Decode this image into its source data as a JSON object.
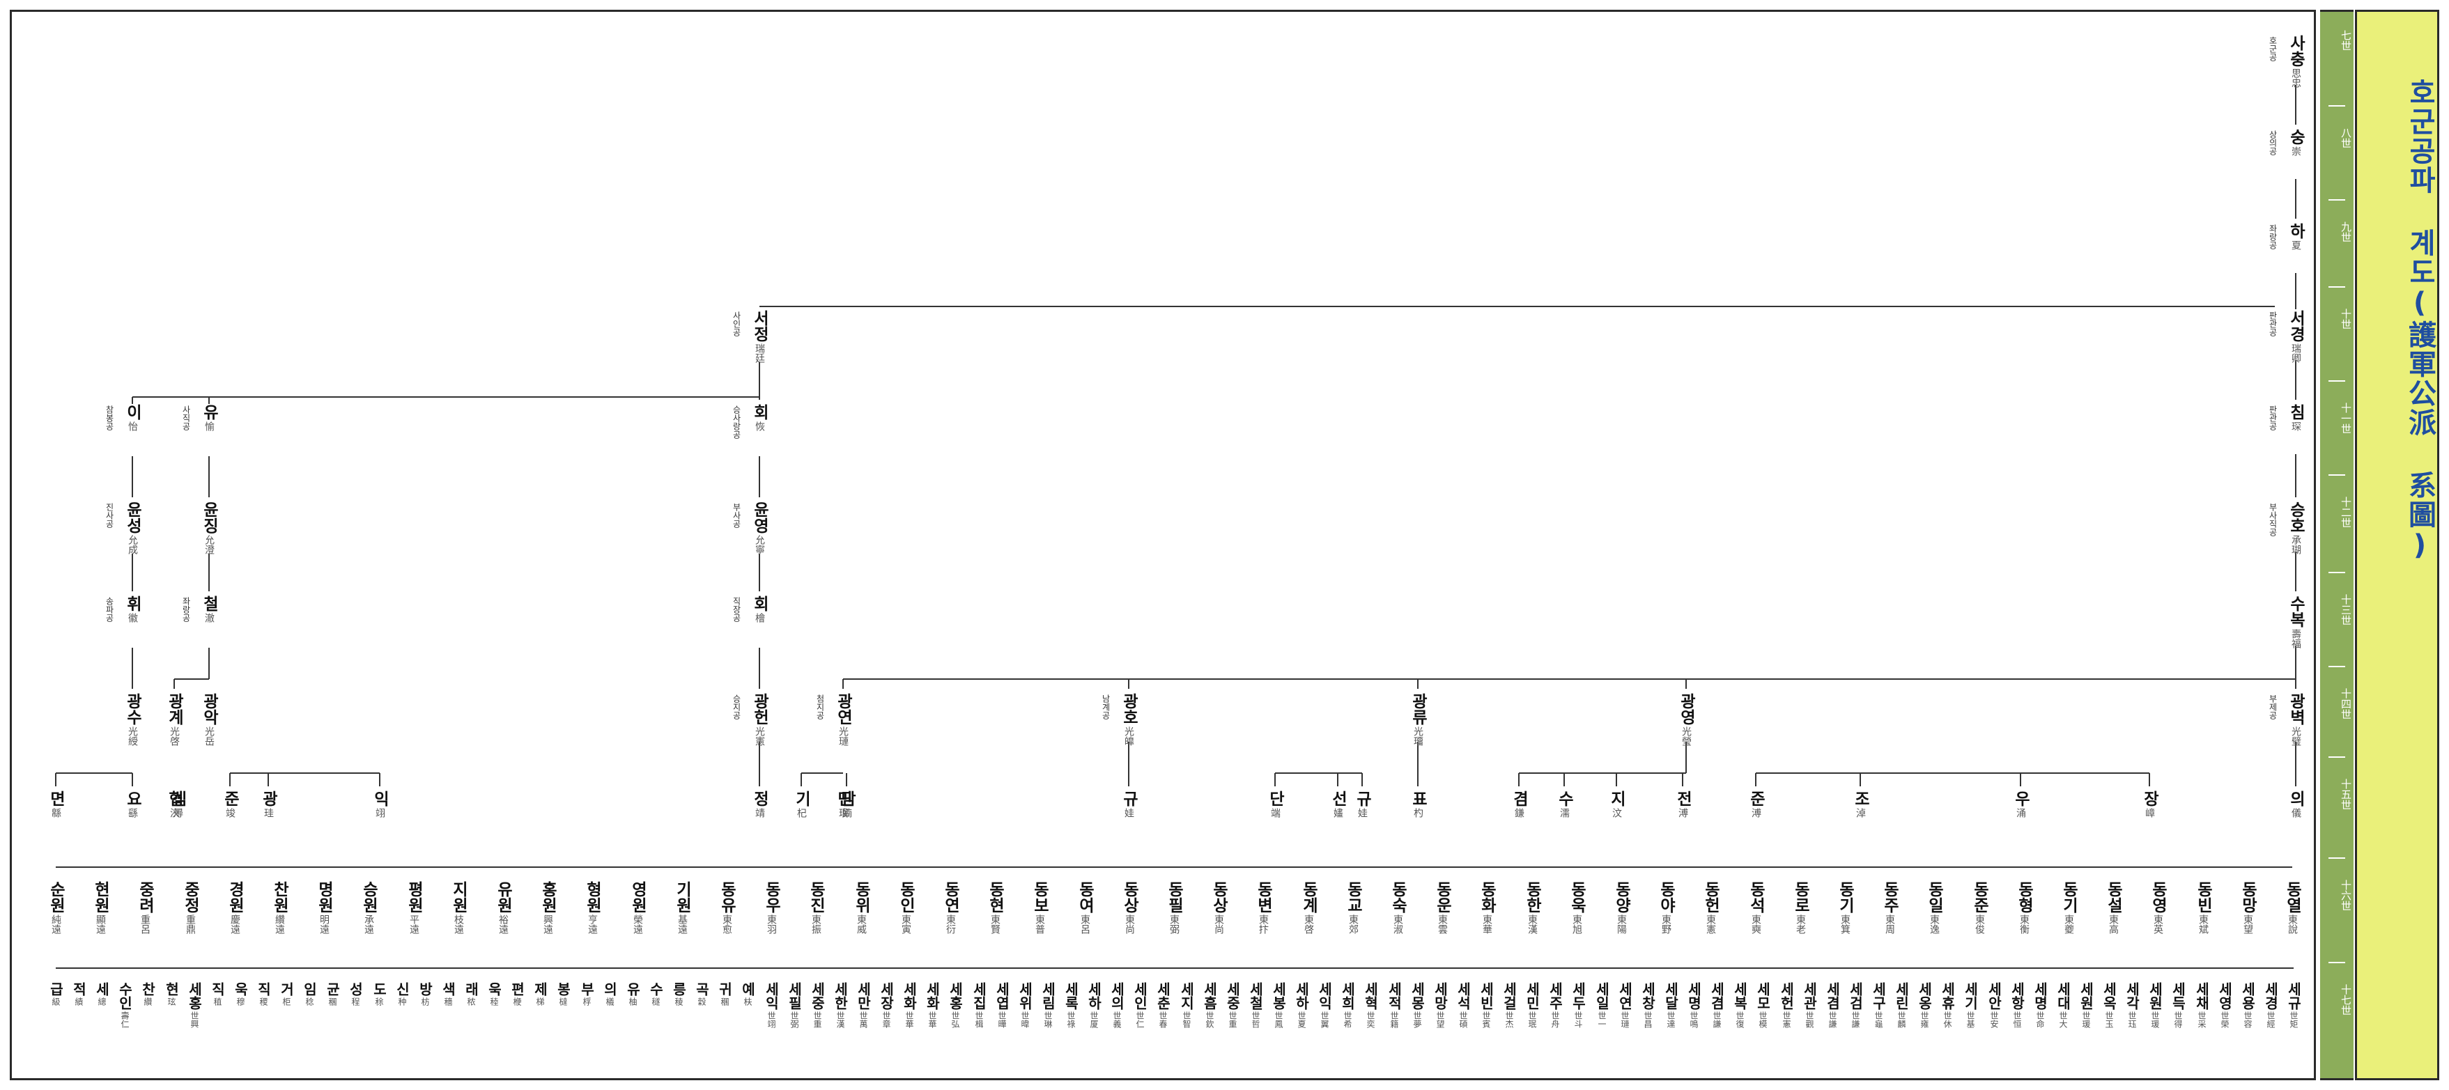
{
  "title": "호군공파 계도(護軍公派 系圖)",
  "generations": [
    "七世",
    "八世",
    "九世",
    "十世",
    "十一世",
    "十二世",
    "十三世",
    "十四世",
    "十五世",
    "十六世",
    "十七世"
  ],
  "people": {
    "p7": {
      "name": "사충",
      "hanja": "思忠",
      "title": "호군공"
    },
    "p8": {
      "name": "숭",
      "hanja": "崇",
      "title": "상의공"
    },
    "p9": {
      "name": "하",
      "hanja": "夏",
      "title": "좌랑공"
    },
    "p10a": {
      "name": "서경",
      "hanja": "瑞卿",
      "title": "판관공"
    },
    "p10b": {
      "name": "서정",
      "hanja": "瑞廷",
      "title": "사인공"
    },
    "p11a": {
      "name": "침",
      "hanja": "琛",
      "title": "판관공"
    },
    "p11b": {
      "name": "회",
      "hanja": "恢",
      "title": "승사랑공"
    },
    "p11c": {
      "name": "유",
      "hanja": "愉",
      "title": "사직공"
    },
    "p11d": {
      "name": "이",
      "hanja": "怡",
      "title": "참봉공"
    },
    "p12a": {
      "name": "승호",
      "hanja": "承瑚",
      "title": "부사직공"
    },
    "p12b": {
      "name": "윤영",
      "hanja": "允寧",
      "title": "부사공"
    },
    "p12c": {
      "name": "윤징",
      "hanja": "允澄",
      "title": ""
    },
    "p12d": {
      "name": "윤성",
      "hanja": "允成",
      "title": "진사공"
    },
    "p13a": {
      "name": "수복",
      "hanja": "壽福",
      "title": ""
    },
    "p13b": {
      "name": "회",
      "hanja": "檜",
      "title": "직장공"
    },
    "p13c": {
      "name": "철",
      "hanja": "澈",
      "title": "좌랑공"
    },
    "p13d": {
      "name": "휘",
      "hanja": "徽",
      "title": "송파공"
    },
    "p14a": {
      "name": "광벽",
      "hanja": "光璧",
      "title": "부제공"
    },
    "p14b": {
      "name": "광영",
      "hanja": "光瑩",
      "title": ""
    },
    "p14c": {
      "name": "광류",
      "hanja": "光璢",
      "title": ""
    },
    "p14d": {
      "name": "광호",
      "hanja": "光皥",
      "title": "남계공"
    },
    "p14e": {
      "name": "광연",
      "hanja": "光璉",
      "title": "첨지공"
    },
    "p14f": {
      "name": "광헌",
      "hanja": "光憲",
      "title": "승지공"
    },
    "p14g": {
      "name": "광악",
      "hanja": "光岳",
      "title": ""
    },
    "p14h": {
      "name": "광계",
      "hanja": "光啓",
      "title": ""
    },
    "p14i": {
      "name": "광수",
      "hanja": "光綬",
      "title": ""
    },
    "p15": [
      {
        "name": "의",
        "hanja": "儀"
      },
      {
        "name": "장",
        "hanja": "嶂"
      },
      {
        "name": "우",
        "hanja": "涌"
      },
      {
        "name": "조",
        "hanja": "淖"
      },
      {
        "name": "준",
        "hanja": "溥"
      },
      {
        "name": "전",
        "hanja": "溥"
      },
      {
        "name": "지",
        "hanja": "汶"
      },
      {
        "name": "수",
        "hanja": "濡"
      },
      {
        "name": "겸",
        "hanja": "鎌"
      },
      {
        "name": "표",
        "hanja": "杓"
      },
      {
        "name": "규",
        "hanja": "娃"
      },
      {
        "name": "선",
        "hanja": "嫿"
      },
      {
        "name": "단",
        "hanja": "端"
      },
      {
        "name": "규",
        "hanja": "娃"
      },
      {
        "name": "담",
        "hanja": "婻"
      },
      {
        "name": "민",
        "hanja": "珉"
      },
      {
        "name": "기",
        "hanja": "杞"
      },
      {
        "name": "정",
        "hanja": "靖"
      },
      {
        "name": "익",
        "hanja": "翊"
      },
      {
        "name": "광",
        "hanja": "珪"
      },
      {
        "name": "준",
        "hanja": "竣"
      },
      {
        "name": "심",
        "hanja": "潯"
      },
      {
        "name": "협",
        "hanja": "浹"
      },
      {
        "name": "요",
        "hanja": "繇"
      },
      {
        "name": "면",
        "hanja": "緜"
      }
    ],
    "p16": [
      {
        "name": "동열",
        "hanja": "東說"
      },
      {
        "name": "동망",
        "hanja": "東望"
      },
      {
        "name": "동빈",
        "hanja": "東斌"
      },
      {
        "name": "동영",
        "hanja": "東英"
      },
      {
        "name": "동설",
        "hanja": "東高"
      },
      {
        "name": "동기",
        "hanja": "東夔"
      },
      {
        "name": "동형",
        "hanja": "東衡"
      },
      {
        "name": "동준",
        "hanja": "東俊"
      },
      {
        "name": "동일",
        "hanja": "東逸"
      },
      {
        "name": "동주",
        "hanja": "東周"
      },
      {
        "name": "동기",
        "hanja": "東箕"
      },
      {
        "name": "동로",
        "hanja": "東老"
      },
      {
        "name": "동석",
        "hanja": "東奭"
      },
      {
        "name": "동헌",
        "hanja": "東憲"
      },
      {
        "name": "동야",
        "hanja": "東野"
      },
      {
        "name": "동양",
        "hanja": "東陽"
      },
      {
        "name": "동욱",
        "hanja": "東旭"
      },
      {
        "name": "동한",
        "hanja": "東漢"
      },
      {
        "name": "동화",
        "hanja": "東華"
      },
      {
        "name": "동운",
        "hanja": "東雲"
      },
      {
        "name": "동숙",
        "hanja": "東淑"
      },
      {
        "name": "동교",
        "hanja": "東郊"
      },
      {
        "name": "동계",
        "hanja": "東啓"
      },
      {
        "name": "동변",
        "hanja": "東抃"
      },
      {
        "name": "동상",
        "hanja": "東尚"
      },
      {
        "name": "동필",
        "hanja": "東弼"
      },
      {
        "name": "동상",
        "hanja": "東尚"
      },
      {
        "name": "동여",
        "hanja": "東呂"
      },
      {
        "name": "동보",
        "hanja": "東普"
      },
      {
        "name": "동현",
        "hanja": "東賢"
      },
      {
        "name": "동연",
        "hanja": "東衍"
      },
      {
        "name": "동인",
        "hanja": "東寅"
      },
      {
        "name": "동위",
        "hanja": "東威"
      },
      {
        "name": "동진",
        "hanja": "東振"
      },
      {
        "name": "동우",
        "hanja": "東羽"
      },
      {
        "name": "동유",
        "hanja": "東愈"
      },
      {
        "name": "기원",
        "hanja": "基遠"
      },
      {
        "name": "영원",
        "hanja": "榮遠"
      },
      {
        "name": "형원",
        "hanja": "亨遠"
      },
      {
        "name": "홍원",
        "hanja": "興遠"
      },
      {
        "name": "유원",
        "hanja": "裕遠"
      },
      {
        "name": "지원",
        "hanja": "枝遠"
      },
      {
        "name": "평원",
        "hanja": "平遠"
      },
      {
        "name": "승원",
        "hanja": "承遠"
      },
      {
        "name": "명원",
        "hanja": "明遠"
      },
      {
        "name": "찬원",
        "hanja": "纘遠"
      },
      {
        "name": "경원",
        "hanja": "慶遠"
      },
      {
        "name": "중정",
        "hanja": "重鼎"
      },
      {
        "name": "중려",
        "hanja": "重呂"
      },
      {
        "name": "현원",
        "hanja": "顯遠"
      },
      {
        "name": "순원",
        "hanja": "純遠"
      }
    ],
    "p17": [
      {
        "name": "세규",
        "hanja": "世矩"
      },
      {
        "name": "세경",
        "hanja": "世經"
      },
      {
        "name": "세용",
        "hanja": "世容"
      },
      {
        "name": "세영",
        "hanja": "世榮"
      },
      {
        "name": "세채",
        "hanja": "世采"
      },
      {
        "name": "세득",
        "hanja": "世得"
      },
      {
        "name": "세원",
        "hanja": "世瑗"
      },
      {
        "name": "세각",
        "hanja": "世珏"
      },
      {
        "name": "세옥",
        "hanja": "世玉"
      },
      {
        "name": "세원",
        "hanja": "世瑗"
      },
      {
        "name": "세대",
        "hanja": "世大"
      },
      {
        "name": "세명",
        "hanja": "世命"
      },
      {
        "name": "세항",
        "hanja": "世恒"
      },
      {
        "name": "세안",
        "hanja": "世安"
      },
      {
        "name": "세기",
        "hanja": "世基"
      },
      {
        "name": "세휴",
        "hanja": "世休"
      },
      {
        "name": "세옹",
        "hanja": "世雍"
      },
      {
        "name": "세린",
        "hanja": "世麟"
      },
      {
        "name": "세구",
        "hanja": "世龜"
      },
      {
        "name": "세검",
        "hanja": "世謙"
      },
      {
        "name": "세겸",
        "hanja": "世謙"
      },
      {
        "name": "세관",
        "hanja": "世觀"
      },
      {
        "name": "세헌",
        "hanja": "世憲"
      },
      {
        "name": "세모",
        "hanja": "世模"
      },
      {
        "name": "세복",
        "hanja": "世復"
      },
      {
        "name": "세겸",
        "hanja": "世謙"
      },
      {
        "name": "세명",
        "hanja": "世鳴"
      },
      {
        "name": "세달",
        "hanja": "世達"
      },
      {
        "name": "세창",
        "hanja": "世昌"
      },
      {
        "name": "세연",
        "hanja": "世璉"
      },
      {
        "name": "세일",
        "hanja": "世一"
      },
      {
        "name": "세두",
        "hanja": "世斗"
      },
      {
        "name": "세주",
        "hanja": "世舟"
      },
      {
        "name": "세민",
        "hanja": "世珉"
      },
      {
        "name": "세걸",
        "hanja": "世杰"
      },
      {
        "name": "세빈",
        "hanja": "世賓"
      },
      {
        "name": "세석",
        "hanja": "世碩"
      },
      {
        "name": "세망",
        "hanja": "世望"
      },
      {
        "name": "세몽",
        "hanja": "世夢"
      },
      {
        "name": "세적",
        "hanja": "世籍"
      },
      {
        "name": "세혁",
        "hanja": "世奕"
      },
      {
        "name": "세희",
        "hanja": "世希"
      },
      {
        "name": "세익",
        "hanja": "世翼"
      },
      {
        "name": "세하",
        "hanja": "世夏"
      },
      {
        "name": "세봉",
        "hanja": "世鳳"
      },
      {
        "name": "세철",
        "hanja": "世哲"
      },
      {
        "name": "세중",
        "hanja": "世重"
      },
      {
        "name": "세흠",
        "hanja": "世欽"
      },
      {
        "name": "세지",
        "hanja": "世智"
      },
      {
        "name": "세춘",
        "hanja": "世春"
      },
      {
        "name": "세인",
        "hanja": "世仁"
      },
      {
        "name": "세의",
        "hanja": "世義"
      },
      {
        "name": "세하",
        "hanja": "世厦"
      },
      {
        "name": "세록",
        "hanja": "世祿"
      },
      {
        "name": "세림",
        "hanja": "世琳"
      },
      {
        "name": "세위",
        "hanja": "世暐"
      },
      {
        "name": "세엽",
        "hanja": "世曄"
      },
      {
        "name": "세집",
        "hanja": "世楫"
      },
      {
        "name": "세홍",
        "hanja": "世弘"
      },
      {
        "name": "세화",
        "hanja": "世華"
      },
      {
        "name": "세화",
        "hanja": "世華"
      },
      {
        "name": "세장",
        "hanja": "世章"
      },
      {
        "name": "세만",
        "hanja": "世萬"
      },
      {
        "name": "세한",
        "hanja": "世漢"
      },
      {
        "name": "세중",
        "hanja": "世重"
      },
      {
        "name": "세필",
        "hanja": "世弼"
      },
      {
        "name": "세익",
        "hanja": "世翊"
      },
      {
        "name": "예",
        "hanja": "枎"
      },
      {
        "name": "귀",
        "hanja": "稛"
      },
      {
        "name": "곡",
        "hanja": "穀"
      },
      {
        "name": "릉",
        "hanja": "稜"
      },
      {
        "name": "수",
        "hanja": "穟"
      },
      {
        "name": "유",
        "hanja": "柚"
      },
      {
        "name": "의",
        "hanja": "檥"
      },
      {
        "name": "부",
        "hanja": "桴"
      },
      {
        "name": "봉",
        "hanja": "橽"
      },
      {
        "name": "제",
        "hanja": "梯"
      },
      {
        "name": "편",
        "hanja": "楩"
      },
      {
        "name": "욱",
        "hanja": "稑"
      },
      {
        "name": "래",
        "hanja": "秾"
      },
      {
        "name": "색",
        "hanja": "穡"
      },
      {
        "name": "방",
        "hanja": "枋"
      },
      {
        "name": "신",
        "hanja": "种"
      },
      {
        "name": "도",
        "hanja": "稌"
      },
      {
        "name": "성",
        "hanja": "程"
      },
      {
        "name": "균",
        "hanja": "稛"
      },
      {
        "name": "임",
        "hanja": "稔"
      },
      {
        "name": "거",
        "hanja": "柜"
      },
      {
        "name": "직",
        "hanja": "稷"
      },
      {
        "name": "욱",
        "hanja": "穆"
      },
      {
        "name": "직",
        "hanja": "稙"
      },
      {
        "name": "세홍",
        "hanja": "世興"
      },
      {
        "name": "현",
        "hanja": "玹"
      },
      {
        "name": "찬",
        "hanja": "纘"
      },
      {
        "name": "수인",
        "hanja": "壽仁"
      },
      {
        "name": "세",
        "hanja": "總"
      },
      {
        "name": "적",
        "hanja": "績"
      },
      {
        "name": "급",
        "hanja": "級"
      }
    ]
  }
}
